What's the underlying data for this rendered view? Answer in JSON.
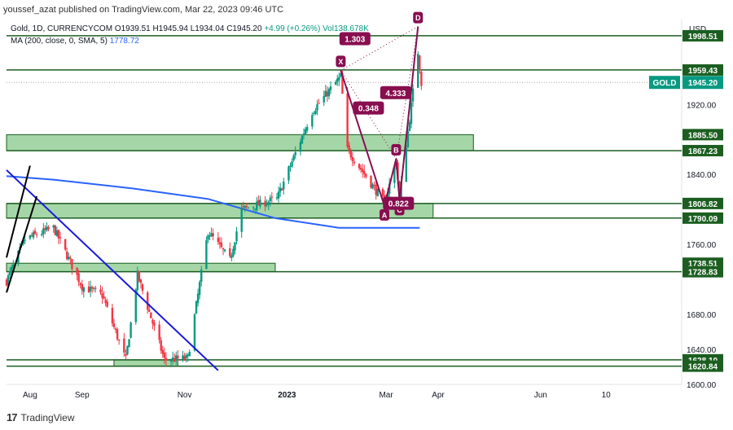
{
  "header": {
    "publisher": "youssef_azat published on TradingView.com, Mar 22, 2023 09:46 UTC"
  },
  "legend": {
    "symbol": "Gold, 1D, CURRENCYCOM",
    "open": "O1939.51",
    "high": "H1945.94",
    "low": "L1934.04",
    "close": "C1945.20",
    "change": "+4.99 (+0.26%)",
    "volume": "Vol138.678K",
    "ma_label": "MA (200, close, 0, SMA, 5)",
    "ma_value": "1778.72"
  },
  "axis": {
    "currency": "USD"
  },
  "footer": {
    "brand": "TradingView"
  },
  "chart_data": {
    "type": "candlestick",
    "symbol": "GOLD",
    "timeframe": "1D",
    "ylim": [
      1600,
      2018
    ],
    "y_ticks": [
      1600,
      1640,
      1680,
      1720,
      1760,
      1800,
      1840,
      1880,
      1920,
      1960
    ],
    "y_tick_labels": [
      "1600.00",
      "1640.00",
      "1680.00",
      "",
      "1760.00",
      "",
      "1840.00",
      "",
      "1920.00",
      ""
    ],
    "x_labels": [
      {
        "label": "Aug",
        "date": "2022-08-01"
      },
      {
        "label": "Sep",
        "date": "2022-09-01"
      },
      {
        "label": "Nov",
        "date": "2022-11-01"
      },
      {
        "label": "2023",
        "date": "2023-01-01"
      },
      {
        "label": "Mar",
        "date": "2023-03-01"
      },
      {
        "label": "Apr",
        "date": "2023-04-01"
      },
      {
        "label": "Jun",
        "date": "2023-06-01"
      },
      {
        "label": "10",
        "date": "2023-07-10"
      }
    ],
    "x_range": [
      "2022-07-18",
      "2023-08-24"
    ],
    "last_price": 1945.2,
    "price_labels": [
      {
        "label": "1998.51",
        "value": 1998.51
      },
      {
        "label": "1959.43",
        "value": 1959.43
      },
      {
        "label": "1885.50",
        "value": 1885.5
      },
      {
        "label": "1867.23",
        "value": 1867.23
      },
      {
        "label": "1806.82",
        "value": 1806.82
      },
      {
        "label": "1790.09",
        "value": 1790.09
      },
      {
        "label": "1738.51",
        "value": 1738.51
      },
      {
        "label": "1728.83",
        "value": 1728.83
      },
      {
        "label": "1628.10",
        "value": 1628.1
      },
      {
        "label": "1620.84",
        "value": 1620.84
      }
    ],
    "horizontal_lines": [
      1998.51,
      1959.43,
      1867.23,
      1806.82,
      1790.09,
      1728.83,
      1628.1,
      1620.84
    ],
    "zones": [
      {
        "from": 1867.23,
        "to": 1885.5,
        "start": "2022-07-18",
        "end": "2023-04-22"
      },
      {
        "from": 1790.09,
        "to": 1806.82,
        "start": "2022-07-18",
        "end": "2023-03-29"
      },
      {
        "from": 1728.83,
        "to": 1738.51,
        "start": "2022-07-18",
        "end": "2022-12-25"
      },
      {
        "from": 1620.84,
        "to": 1628.1,
        "start": "2022-09-20",
        "end": "2022-10-28"
      }
    ],
    "harmonic_pattern": {
      "points": [
        {
          "label": "X",
          "date": "2023-02-02",
          "price": 1959
        },
        {
          "label": "A",
          "date": "2023-02-28",
          "price": 1804
        },
        {
          "label": "B",
          "date": "2023-03-07",
          "price": 1858
        },
        {
          "label": "C",
          "date": "2023-03-09",
          "price": 1810
        },
        {
          "label": "D",
          "date": "2023-03-20",
          "price": 2009
        }
      ],
      "ratios": [
        "1.303",
        "0.348",
        "0.822",
        "4.333"
      ]
    },
    "trendlines": [
      {
        "color": "#1a1adb",
        "from": {
          "date": "2022-07-18",
          "price": 1845
        },
        "to": {
          "date": "2022-11-21",
          "price": 1616
        }
      },
      {
        "color": "#000000",
        "from": {
          "date": "2022-07-18",
          "price": 1705
        },
        "to": {
          "date": "2022-08-05",
          "price": 1815
        }
      },
      {
        "color": "#000000",
        "from": {
          "date": "2022-07-18",
          "price": 1745
        },
        "to": {
          "date": "2022-08-01",
          "price": 1850
        }
      }
    ],
    "ma200": [
      {
        "date": "2022-07-18",
        "value": 1838
      },
      {
        "date": "2022-08-15",
        "value": 1834
      },
      {
        "date": "2022-10-01",
        "value": 1824
      },
      {
        "date": "2022-11-15",
        "value": 1812
      },
      {
        "date": "2022-12-25",
        "value": 1790
      },
      {
        "date": "2023-02-01",
        "value": 1779
      },
      {
        "date": "2023-03-21",
        "value": 1779
      }
    ],
    "ohlc_anchor_closes": [
      {
        "date": "2022-07-18",
        "close": 1718
      },
      {
        "date": "2022-07-29",
        "close": 1766
      },
      {
        "date": "2022-08-15",
        "close": 1779
      },
      {
        "date": "2022-09-01",
        "close": 1712
      },
      {
        "date": "2022-09-13",
        "close": 1702
      },
      {
        "date": "2022-09-27",
        "close": 1628
      },
      {
        "date": "2022-10-04",
        "close": 1725
      },
      {
        "date": "2022-10-20",
        "close": 1628
      },
      {
        "date": "2022-11-03",
        "close": 1630
      },
      {
        "date": "2022-11-15",
        "close": 1775
      },
      {
        "date": "2022-11-28",
        "close": 1742
      },
      {
        "date": "2022-12-05",
        "close": 1800
      },
      {
        "date": "2022-12-26",
        "close": 1812
      },
      {
        "date": "2023-01-16",
        "close": 1912
      },
      {
        "date": "2023-02-02",
        "close": 1952
      },
      {
        "date": "2023-02-06",
        "close": 1868
      },
      {
        "date": "2023-02-28",
        "close": 1808
      },
      {
        "date": "2023-03-07",
        "close": 1855
      },
      {
        "date": "2023-03-09",
        "close": 1813
      },
      {
        "date": "2023-03-20",
        "close": 1980
      },
      {
        "date": "2023-03-22",
        "close": 1945
      }
    ],
    "colors": {
      "up": "#089981",
      "down": "#f23645",
      "ma": "#2962ff",
      "zone": "#a5d6a7",
      "zone_border": "#1b5e20",
      "pattern": "#880e4f"
    }
  }
}
